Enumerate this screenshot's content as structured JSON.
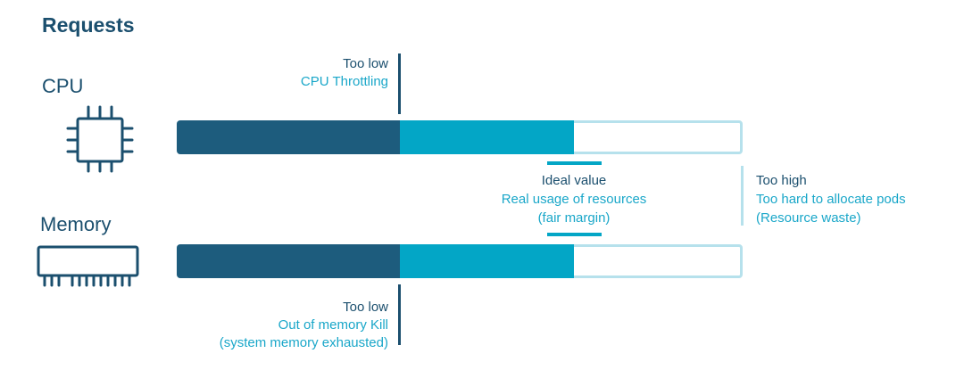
{
  "title": "Requests",
  "cpu": {
    "label": "CPU",
    "icon": "cpu-chip-icon"
  },
  "memory": {
    "label": "Memory",
    "icon": "memory-module-icon"
  },
  "annotations": {
    "cpu_too_low": {
      "heading": "Too low",
      "detail": "CPU Throttling"
    },
    "ideal": {
      "heading": "Ideal value",
      "detail": "Real usage of resources",
      "note": "(fair margin)"
    },
    "too_high": {
      "heading": "Too high",
      "detail": "Too hard to allocate pods",
      "note": "(Resource waste)"
    },
    "mem_too_low": {
      "heading": "Too low",
      "detail": "Out of memory Kill",
      "note": "(system memory exhausted)"
    }
  },
  "colors": {
    "dark": "#1d5c7d",
    "teal": "#03a6c6",
    "light": "#b6e1ec",
    "text_dark": "#1b4f6e",
    "text_teal": "#1aa7c9"
  }
}
